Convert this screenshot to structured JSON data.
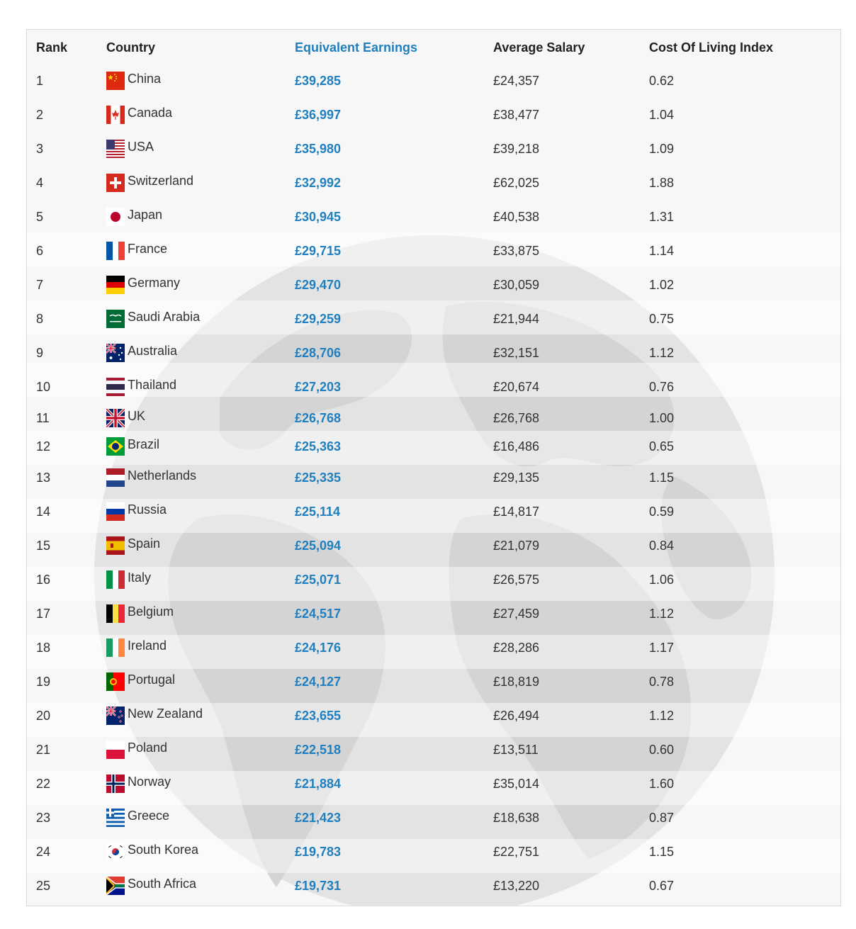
{
  "table": {
    "headers": {
      "rank": "Rank",
      "country": "Country",
      "earnings": "Equivalent Earnings",
      "salary": "Average Salary",
      "index": "Cost Of Living Index"
    },
    "rows": [
      {
        "rank": "1",
        "country": "China",
        "earnings": "£39,285",
        "salary": "£24,357",
        "index": "0.62",
        "flag_icon": "china-flag-icon"
      },
      {
        "rank": "2",
        "country": "Canada",
        "earnings": "£36,997",
        "salary": "£38,477",
        "index": "1.04",
        "flag_icon": "canada-flag-icon"
      },
      {
        "rank": "3",
        "country": "USA",
        "earnings": "£35,980",
        "salary": "£39,218",
        "index": "1.09",
        "flag_icon": "usa-flag-icon"
      },
      {
        "rank": "4",
        "country": "Switzerland",
        "earnings": "£32,992",
        "salary": "£62,025",
        "index": "1.88",
        "flag_icon": "switzerland-flag-icon"
      },
      {
        "rank": "5",
        "country": "Japan",
        "earnings": "£30,945",
        "salary": "£40,538",
        "index": "1.31",
        "flag_icon": "japan-flag-icon"
      },
      {
        "rank": "6",
        "country": "France",
        "earnings": "£29,715",
        "salary": "£33,875",
        "index": "1.14",
        "flag_icon": "france-flag-icon"
      },
      {
        "rank": "7",
        "country": "Germany",
        "earnings": "£29,470",
        "salary": "£30,059",
        "index": "1.02",
        "flag_icon": "germany-flag-icon"
      },
      {
        "rank": "8",
        "country": "Saudi Arabia",
        "earnings": "£29,259",
        "salary": "£21,944",
        "index": "0.75",
        "flag_icon": "saudi-arabia-flag-icon"
      },
      {
        "rank": "9",
        "country": "Australia",
        "earnings": "£28,706",
        "salary": "£32,151",
        "index": "1.12",
        "flag_icon": "australia-flag-icon"
      },
      {
        "rank": "10",
        "country": "Thailand",
        "earnings": "£27,203",
        "salary": "£20,674",
        "index": "0.76",
        "flag_icon": "thailand-flag-icon"
      },
      {
        "rank": "11",
        "country": "UK",
        "earnings": "£26,768",
        "salary": "£26,768",
        "index": "1.00",
        "flag_icon": "uk-flag-icon"
      },
      {
        "rank": "12",
        "country": "Brazil",
        "earnings": "£25,363",
        "salary": "£16,486",
        "index": "0.65",
        "flag_icon": "brazil-flag-icon"
      },
      {
        "rank": "13",
        "country": "Netherlands",
        "earnings": "£25,335",
        "salary": "£29,135",
        "index": "1.15",
        "flag_icon": "netherlands-flag-icon"
      },
      {
        "rank": "14",
        "country": "Russia",
        "earnings": "£25,114",
        "salary": "£14,817",
        "index": "0.59",
        "flag_icon": "russia-flag-icon"
      },
      {
        "rank": "15",
        "country": "Spain",
        "earnings": "£25,094",
        "salary": "£21,079",
        "index": "0.84",
        "flag_icon": "spain-flag-icon"
      },
      {
        "rank": "16",
        "country": "Italy",
        "earnings": "£25,071",
        "salary": "£26,575",
        "index": "1.06",
        "flag_icon": "italy-flag-icon"
      },
      {
        "rank": "17",
        "country": "Belgium",
        "earnings": "£24,517",
        "salary": "£27,459",
        "index": "1.12",
        "flag_icon": "belgium-flag-icon"
      },
      {
        "rank": "18",
        "country": "Ireland",
        "earnings": "£24,176",
        "salary": "£28,286",
        "index": "1.17",
        "flag_icon": "ireland-flag-icon"
      },
      {
        "rank": "19",
        "country": "Portugal",
        "earnings": "£24,127",
        "salary": "£18,819",
        "index": "0.78",
        "flag_icon": "portugal-flag-icon"
      },
      {
        "rank": "20",
        "country": "New Zealand",
        "earnings": "£23,655",
        "salary": "£26,494",
        "index": "1.12",
        "flag_icon": "new-zealand-flag-icon"
      },
      {
        "rank": "21",
        "country": "Poland",
        "earnings": "£22,518",
        "salary": "£13,511",
        "index": "0.60",
        "flag_icon": "poland-flag-icon"
      },
      {
        "rank": "22",
        "country": "Norway",
        "earnings": "£21,884",
        "salary": "£35,014",
        "index": "1.60",
        "flag_icon": "norway-flag-icon"
      },
      {
        "rank": "23",
        "country": "Greece",
        "earnings": "£21,423",
        "salary": "£18,638",
        "index": "0.87",
        "flag_icon": "greece-flag-icon"
      },
      {
        "rank": "24",
        "country": "South Korea",
        "earnings": "£19,783",
        "salary": "£22,751",
        "index": "1.15",
        "flag_icon": "south-korea-flag-icon"
      },
      {
        "rank": "25",
        "country": "South Africa",
        "earnings": "£19,731",
        "salary": "£13,220",
        "index": "0.67",
        "flag_icon": "south-africa-flag-icon"
      }
    ]
  },
  "colors": {
    "accent": "#1f7fbf",
    "text": "#333333",
    "table_background": "#f7f7f7",
    "border": "#dcdcdc"
  },
  "watermark_icon": "globe-watermark-icon"
}
